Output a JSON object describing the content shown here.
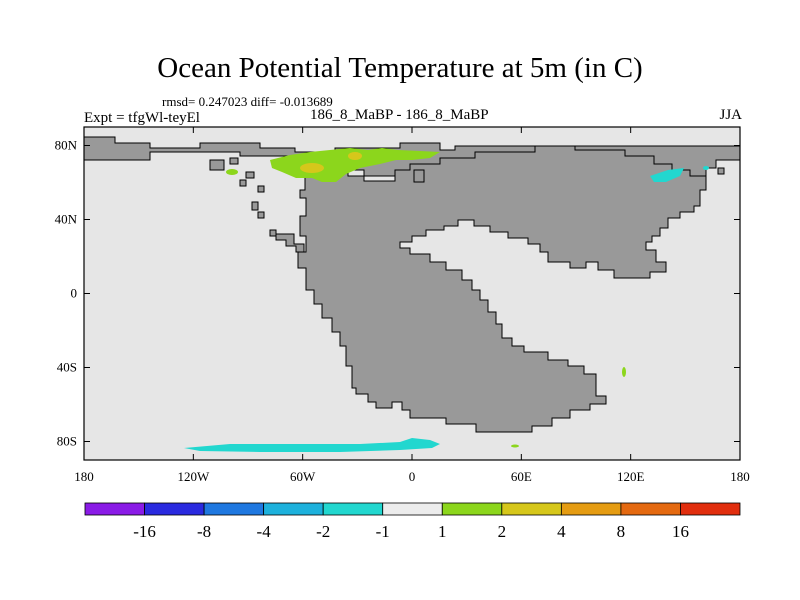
{
  "title": "Ocean Potential Temperature at 5m (in C)",
  "stats_line": "rmsd= 0.247023 diff= -0.013689",
  "left_label": "Expt = tfgWl-teyEl",
  "center_label": "186_8_MaBP - 186_8_MaBP",
  "right_label": "JJA",
  "lat_ticks": [
    "80N",
    "40N",
    "0",
    "40S",
    "80S"
  ],
  "lon_ticks": [
    "180",
    "120W",
    "60W",
    "0",
    "60E",
    "120E",
    "180"
  ],
  "colorbar": {
    "colors": [
      "#8a1be6",
      "#2a2adf",
      "#1f78e0",
      "#1db1dc",
      "#22d7cf",
      "#ececec",
      "#8cd61c",
      "#d6c71b",
      "#e59c12",
      "#e46910",
      "#e12e0e"
    ],
    "labels": [
      "-16",
      "-8",
      "-4",
      "-2",
      "-1",
      "1",
      "2",
      "4",
      "8",
      "16"
    ]
  },
  "colors": {
    "ocean": "#e6e6e6",
    "land": "#999999",
    "outline": "#000000"
  }
}
